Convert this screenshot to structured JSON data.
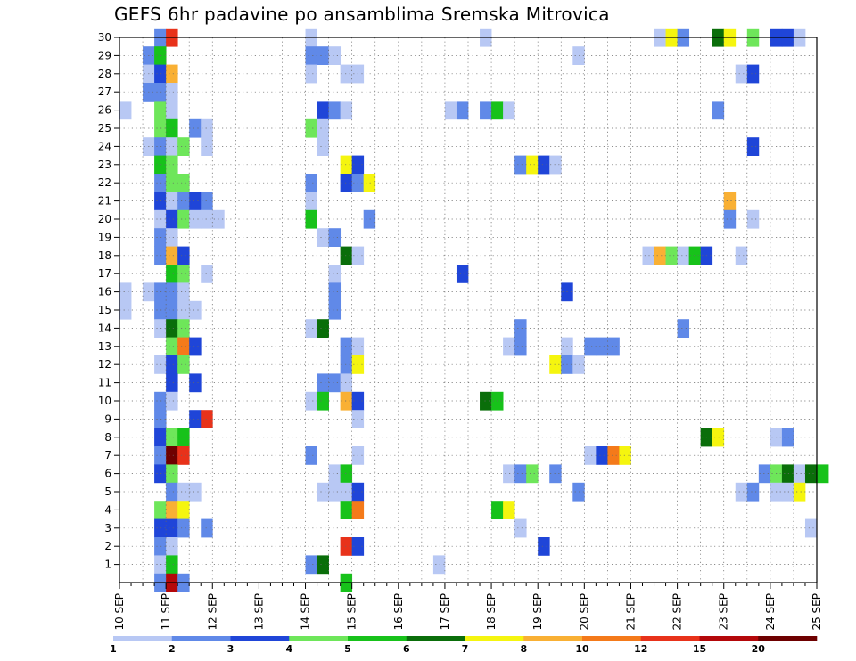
{
  "chart_data": {
    "type": "heatmap",
    "title": "GEFS 6hr padavine po ansamblima Sremska Mitrovica",
    "xlabel": "",
    "ylabel": "",
    "x_ticks": [
      "10 SEP",
      "11 SEP",
      "12 SEP",
      "13 SEP",
      "14 SEP",
      "15 SEP",
      "16 SEP",
      "17 SEP",
      "18 SEP",
      "19 SEP",
      "20 SEP",
      "21 SEP",
      "22 SEP",
      "23 SEP",
      "24 SEP",
      "25 SEP"
    ],
    "y_ticks": [
      1,
      2,
      3,
      4,
      5,
      6,
      7,
      8,
      9,
      10,
      11,
      12,
      13,
      14,
      15,
      16,
      17,
      18,
      19,
      20,
      21,
      22,
      23,
      24,
      25,
      26,
      27,
      28,
      29,
      30
    ],
    "y_range": [
      0,
      30
    ],
    "steps_per_day": 4,
    "grid": true,
    "legend_position": "bottom",
    "colorbar": {
      "labels": [
        "1",
        "2",
        "3",
        "4",
        "5",
        "6",
        "7",
        "8",
        "10",
        "12",
        "15",
        "20"
      ],
      "colors": [
        "#b8c8f4",
        "#6089e8",
        "#1f45d8",
        "#6ee65a",
        "#17c21a",
        "#0a6e0a",
        "#f5f50f",
        "#f9b034",
        "#f47a1a",
        "#e8321a",
        "#b4080a",
        "#6e0000"
      ]
    },
    "cells": [
      [
        30,
        3,
        1
      ],
      [
        30,
        4,
        9
      ],
      [
        30,
        16,
        0
      ],
      [
        30,
        31,
        0
      ],
      [
        30,
        46,
        0
      ],
      [
        30,
        47,
        6
      ],
      [
        30,
        48,
        1
      ],
      [
        30,
        51,
        5
      ],
      [
        30,
        52,
        6
      ],
      [
        30,
        54,
        3
      ],
      [
        30,
        56,
        2
      ],
      [
        30,
        57,
        2
      ],
      [
        30,
        58,
        0
      ],
      [
        29,
        2,
        1
      ],
      [
        29,
        3,
        4
      ],
      [
        29,
        16,
        1
      ],
      [
        29,
        17,
        1
      ],
      [
        29,
        18,
        0
      ],
      [
        29,
        39,
        0
      ],
      [
        28,
        2,
        0
      ],
      [
        28,
        3,
        2
      ],
      [
        28,
        4,
        7
      ],
      [
        28,
        16,
        0
      ],
      [
        28,
        19,
        0
      ],
      [
        28,
        20,
        0
      ],
      [
        28,
        53,
        0
      ],
      [
        28,
        54,
        2
      ],
      [
        27,
        2,
        1
      ],
      [
        27,
        3,
        1
      ],
      [
        27,
        4,
        0
      ],
      [
        26,
        0,
        0
      ],
      [
        26,
        3,
        3
      ],
      [
        26,
        4,
        0
      ],
      [
        26,
        17,
        2
      ],
      [
        26,
        18,
        1
      ],
      [
        26,
        19,
        0
      ],
      [
        26,
        28,
        0
      ],
      [
        26,
        29,
        1
      ],
      [
        26,
        31,
        1
      ],
      [
        26,
        32,
        4
      ],
      [
        26,
        33,
        0
      ],
      [
        26,
        51,
        1
      ],
      [
        25,
        3,
        3
      ],
      [
        25,
        4,
        4
      ],
      [
        25,
        6,
        1
      ],
      [
        25,
        7,
        0
      ],
      [
        25,
        16,
        3
      ],
      [
        25,
        17,
        0
      ],
      [
        24,
        2,
        0
      ],
      [
        24,
        3,
        1
      ],
      [
        24,
        4,
        0
      ],
      [
        24,
        5,
        3
      ],
      [
        24,
        7,
        0
      ],
      [
        24,
        17,
        0
      ],
      [
        24,
        54,
        2
      ],
      [
        23,
        3,
        4
      ],
      [
        23,
        4,
        3
      ],
      [
        23,
        19,
        6
      ],
      [
        23,
        20,
        2
      ],
      [
        23,
        34,
        1
      ],
      [
        23,
        35,
        6
      ],
      [
        23,
        36,
        2
      ],
      [
        23,
        37,
        0
      ],
      [
        22,
        3,
        1
      ],
      [
        22,
        4,
        3
      ],
      [
        22,
        5,
        3
      ],
      [
        22,
        16,
        1
      ],
      [
        22,
        19,
        2
      ],
      [
        22,
        20,
        1
      ],
      [
        22,
        21,
        6
      ],
      [
        21,
        3,
        2
      ],
      [
        21,
        4,
        0
      ],
      [
        21,
        5,
        1
      ],
      [
        21,
        6,
        2
      ],
      [
        21,
        7,
        1
      ],
      [
        21,
        16,
        0
      ],
      [
        21,
        52,
        7
      ],
      [
        20,
        3,
        0
      ],
      [
        20,
        4,
        2
      ],
      [
        20,
        5,
        3
      ],
      [
        20,
        6,
        0
      ],
      [
        20,
        7,
        0
      ],
      [
        20,
        8,
        0
      ],
      [
        20,
        16,
        4
      ],
      [
        20,
        21,
        1
      ],
      [
        20,
        52,
        1
      ],
      [
        20,
        54,
        0
      ],
      [
        19,
        3,
        1
      ],
      [
        19,
        4,
        0
      ],
      [
        19,
        17,
        0
      ],
      [
        19,
        18,
        1
      ],
      [
        18,
        3,
        1
      ],
      [
        18,
        4,
        7
      ],
      [
        18,
        5,
        2
      ],
      [
        18,
        19,
        5
      ],
      [
        18,
        20,
        0
      ],
      [
        18,
        45,
        0
      ],
      [
        18,
        46,
        7
      ],
      [
        18,
        47,
        3
      ],
      [
        18,
        48,
        0
      ],
      [
        18,
        49,
        4
      ],
      [
        18,
        50,
        2
      ],
      [
        18,
        53,
        0
      ],
      [
        17,
        4,
        4
      ],
      [
        17,
        5,
        3
      ],
      [
        17,
        7,
        0
      ],
      [
        17,
        18,
        0
      ],
      [
        17,
        29,
        2
      ],
      [
        16,
        0,
        0
      ],
      [
        16,
        2,
        0
      ],
      [
        16,
        3,
        1
      ],
      [
        16,
        4,
        1
      ],
      [
        16,
        5,
        0
      ],
      [
        16,
        18,
        1
      ],
      [
        16,
        38,
        2
      ],
      [
        15,
        0,
        0
      ],
      [
        15,
        3,
        1
      ],
      [
        15,
        4,
        1
      ],
      [
        15,
        5,
        0
      ],
      [
        15,
        6,
        0
      ],
      [
        15,
        18,
        1
      ],
      [
        14,
        3,
        0
      ],
      [
        14,
        4,
        5
      ],
      [
        14,
        5,
        3
      ],
      [
        14,
        16,
        0
      ],
      [
        14,
        17,
        5
      ],
      [
        14,
        34,
        1
      ],
      [
        14,
        48,
        1
      ],
      [
        13,
        4,
        3
      ],
      [
        13,
        5,
        8
      ],
      [
        13,
        6,
        2
      ],
      [
        13,
        19,
        1
      ],
      [
        13,
        20,
        0
      ],
      [
        13,
        33,
        0
      ],
      [
        13,
        34,
        1
      ],
      [
        13,
        38,
        0
      ],
      [
        13,
        40,
        1
      ],
      [
        13,
        41,
        1
      ],
      [
        13,
        42,
        1
      ],
      [
        12,
        3,
        0
      ],
      [
        12,
        4,
        2
      ],
      [
        12,
        5,
        3
      ],
      [
        12,
        19,
        1
      ],
      [
        12,
        20,
        6
      ],
      [
        12,
        37,
        6
      ],
      [
        12,
        38,
        1
      ],
      [
        12,
        39,
        0
      ],
      [
        11,
        4,
        2
      ],
      [
        11,
        6,
        2
      ],
      [
        11,
        17,
        1
      ],
      [
        11,
        18,
        1
      ],
      [
        11,
        19,
        0
      ],
      [
        10,
        3,
        1
      ],
      [
        10,
        4,
        0
      ],
      [
        10,
        16,
        0
      ],
      [
        10,
        17,
        4
      ],
      [
        10,
        19,
        7
      ],
      [
        10,
        20,
        2
      ],
      [
        10,
        31,
        5
      ],
      [
        10,
        32,
        4
      ],
      [
        9,
        3,
        1
      ],
      [
        9,
        6,
        2
      ],
      [
        9,
        7,
        9
      ],
      [
        9,
        20,
        0
      ],
      [
        8,
        3,
        2
      ],
      [
        8,
        4,
        3
      ],
      [
        8,
        5,
        4
      ],
      [
        8,
        50,
        5
      ],
      [
        8,
        51,
        6
      ],
      [
        8,
        56,
        0
      ],
      [
        8,
        57,
        1
      ],
      [
        7,
        3,
        1
      ],
      [
        7,
        4,
        11
      ],
      [
        7,
        5,
        9
      ],
      [
        7,
        16,
        1
      ],
      [
        7,
        20,
        0
      ],
      [
        7,
        40,
        0
      ],
      [
        7,
        41,
        2
      ],
      [
        7,
        42,
        8
      ],
      [
        7,
        43,
        6
      ],
      [
        6,
        3,
        2
      ],
      [
        6,
        4,
        3
      ],
      [
        6,
        18,
        0
      ],
      [
        6,
        19,
        4
      ],
      [
        6,
        33,
        0
      ],
      [
        6,
        34,
        1
      ],
      [
        6,
        35,
        3
      ],
      [
        6,
        37,
        1
      ],
      [
        6,
        55,
        1
      ],
      [
        6,
        56,
        3
      ],
      [
        6,
        57,
        5
      ],
      [
        6,
        58,
        0
      ],
      [
        6,
        59,
        5
      ],
      [
        6,
        60,
        4
      ],
      [
        5,
        4,
        1
      ],
      [
        5,
        5,
        0
      ],
      [
        5,
        6,
        0
      ],
      [
        5,
        17,
        0
      ],
      [
        5,
        18,
        0
      ],
      [
        5,
        19,
        0
      ],
      [
        5,
        20,
        2
      ],
      [
        5,
        39,
        1
      ],
      [
        5,
        53,
        0
      ],
      [
        5,
        54,
        1
      ],
      [
        5,
        56,
        0
      ],
      [
        5,
        57,
        0
      ],
      [
        5,
        58,
        6
      ],
      [
        4,
        3,
        3
      ],
      [
        4,
        4,
        7
      ],
      [
        4,
        5,
        6
      ],
      [
        4,
        19,
        4
      ],
      [
        4,
        20,
        8
      ],
      [
        4,
        32,
        4
      ],
      [
        4,
        33,
        6
      ],
      [
        3,
        3,
        2
      ],
      [
        3,
        4,
        2
      ],
      [
        3,
        5,
        1
      ],
      [
        3,
        7,
        1
      ],
      [
        3,
        34,
        0
      ],
      [
        3,
        59,
        0
      ],
      [
        2,
        3,
        1
      ],
      [
        2,
        4,
        0
      ],
      [
        2,
        19,
        9
      ],
      [
        2,
        20,
        2
      ],
      [
        2,
        36,
        2
      ],
      [
        1,
        3,
        0
      ],
      [
        1,
        4,
        4
      ],
      [
        1,
        16,
        1
      ],
      [
        1,
        17,
        5
      ],
      [
        1,
        27,
        0
      ],
      [
        0,
        3,
        1
      ],
      [
        0,
        4,
        10
      ],
      [
        0,
        5,
        1
      ],
      [
        0,
        19,
        4
      ]
    ]
  }
}
